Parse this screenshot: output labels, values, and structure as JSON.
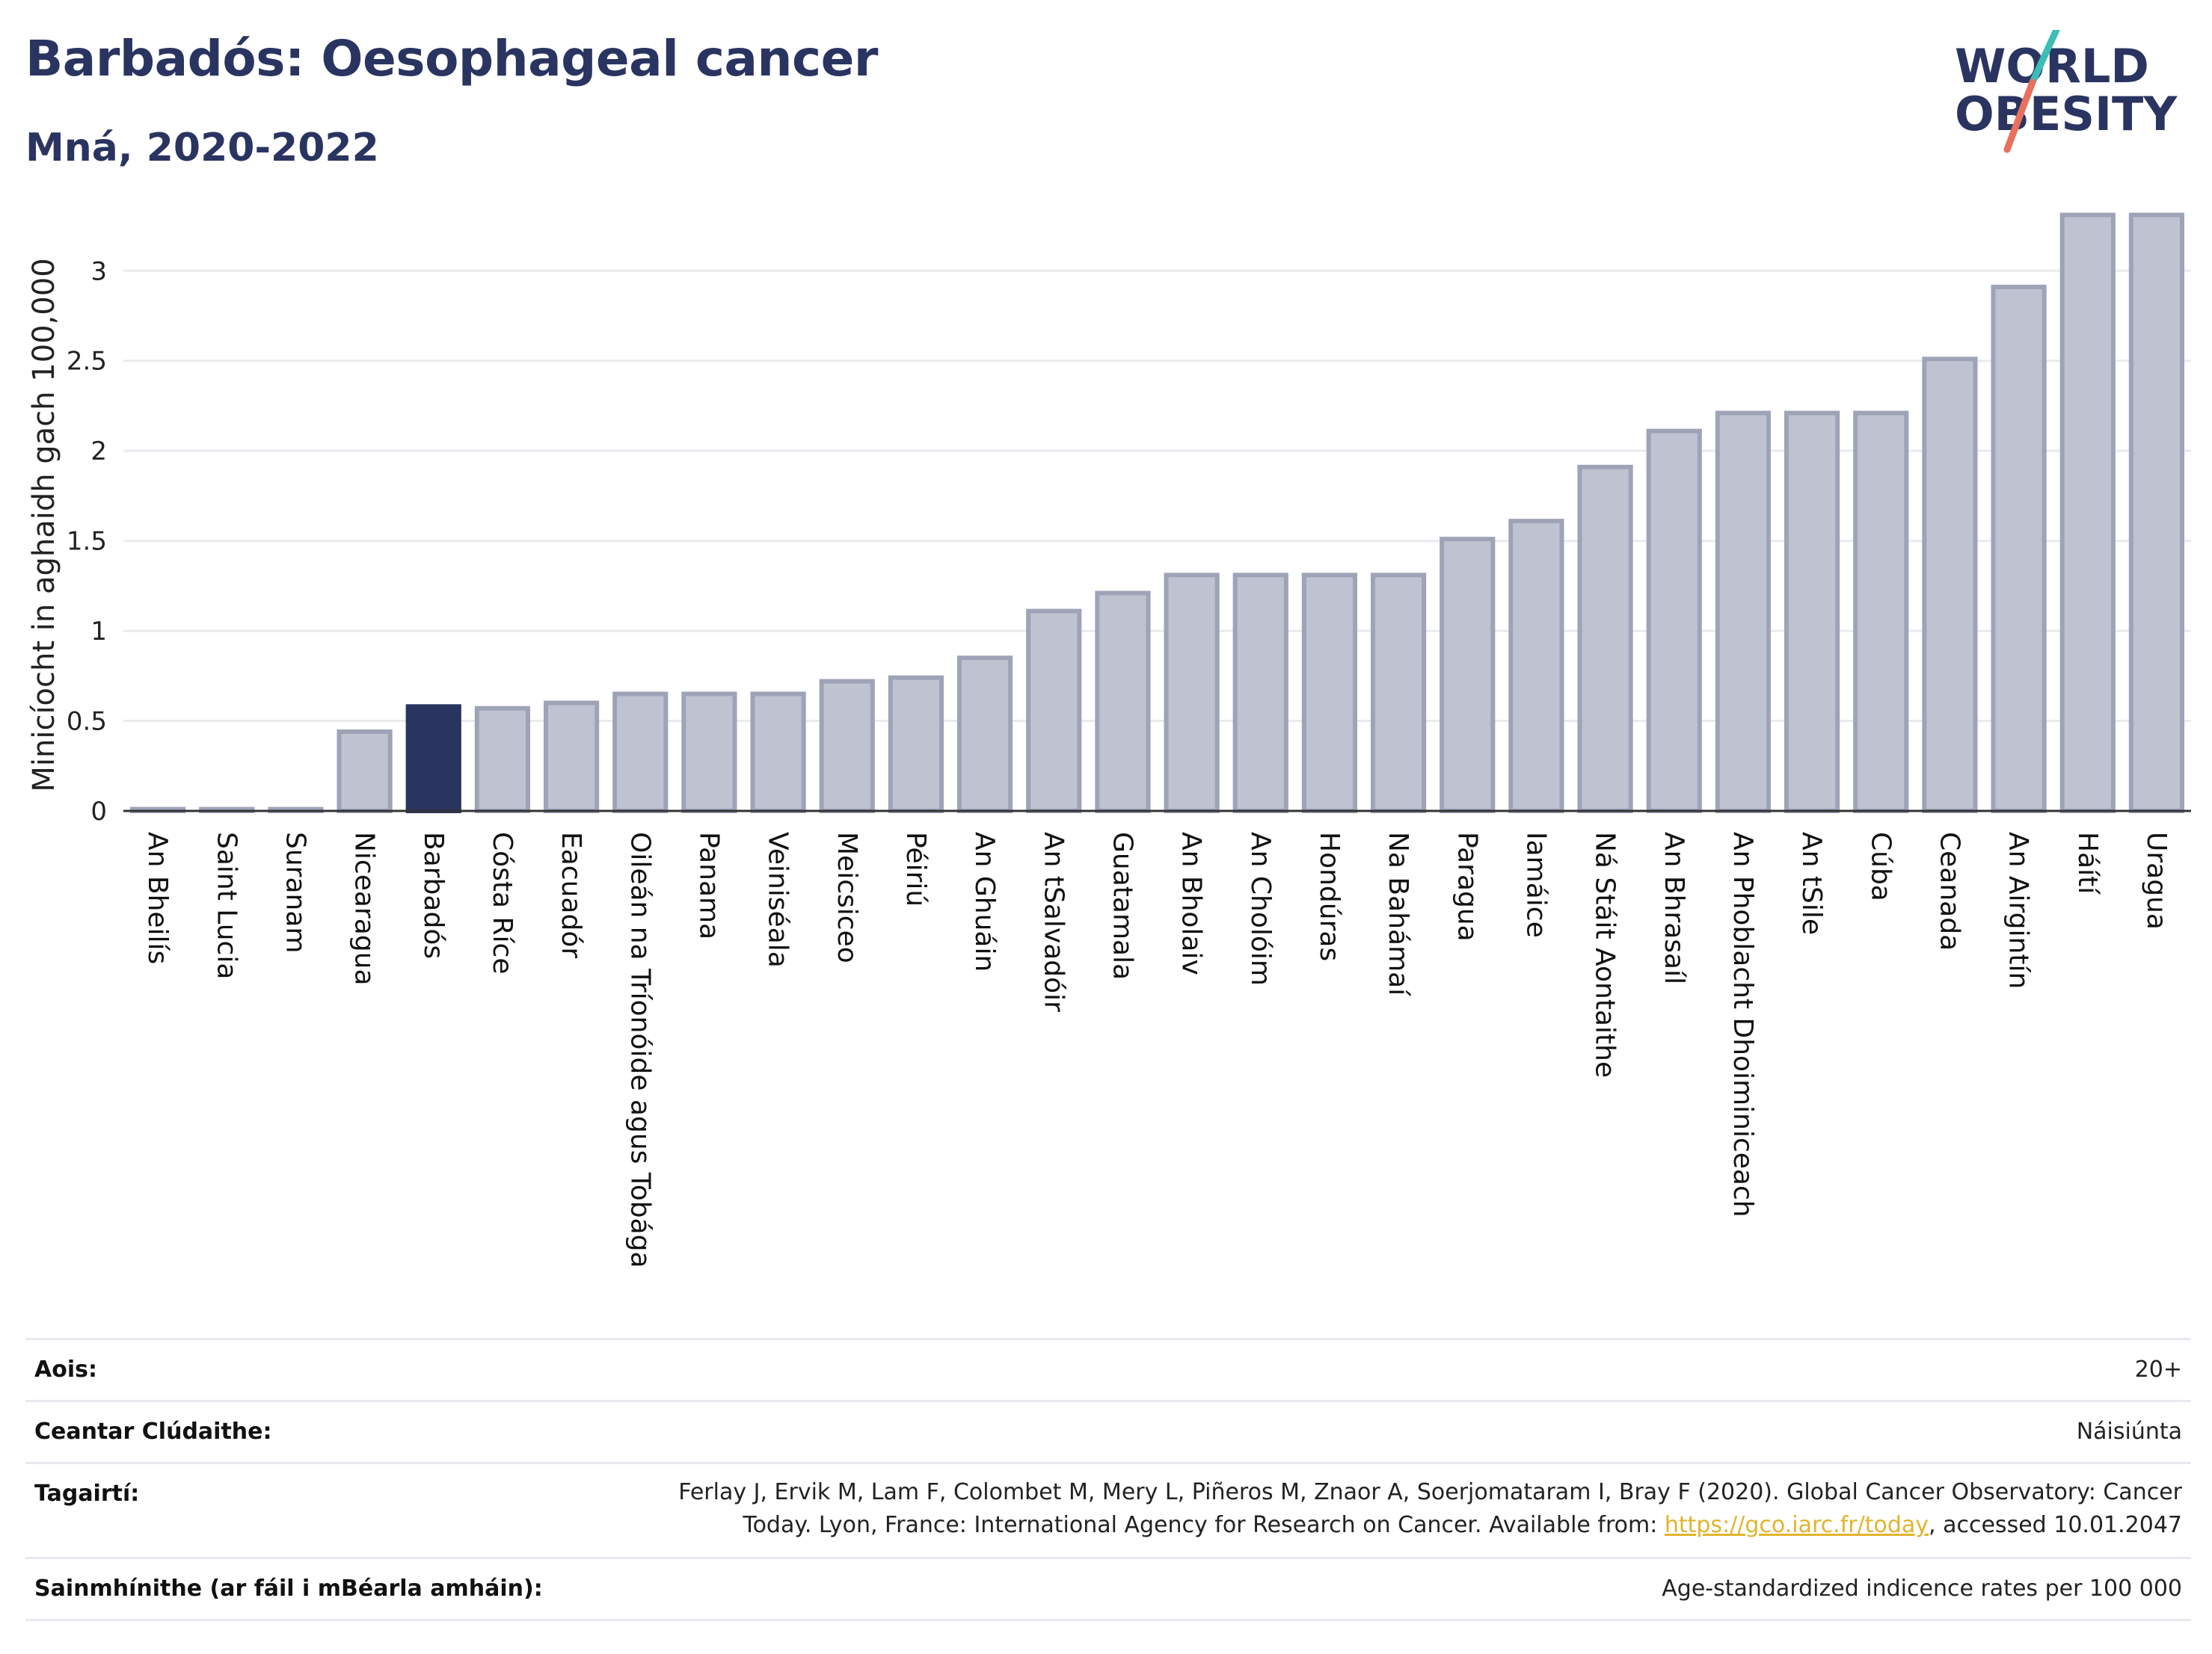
{
  "title": "Barbadós: Oesophageal cancer",
  "subtitle": "Mná, 2020-2022",
  "logo": {
    "line1": "WORLD",
    "line2": "OBESITY"
  },
  "colors": {
    "bar": "#bfc3d1",
    "bar_stroke": "#9ea3b8",
    "highlight": "#2a3461",
    "title": "#2a3461",
    "grid": "#e9ebef",
    "slash_teal": "#3dbdb5",
    "slash_red": "#e8705f"
  },
  "chart_data": {
    "type": "bar",
    "ylabel": "Minicíocht in aghaidh gach 100,000",
    "xlabel": "",
    "ylim": [
      0,
      3.3
    ],
    "yticks": [
      0,
      0.5,
      1,
      1.5,
      2,
      2.5,
      3
    ],
    "ytick_labels": [
      "0",
      "0.5",
      "1",
      "1.5",
      "2",
      "2.5",
      "3"
    ],
    "grid": true,
    "highlight": "Barbadós",
    "categories": [
      "An Bheilís",
      "Saint Lucia",
      "Suranam",
      "Nicearagua",
      "Barbadós",
      "Cósta Ríce",
      "Eacuadór",
      "Oileán na Tríonóide agus Tobága",
      "Panama",
      "Veiniséala",
      "Meicsiceo",
      "Péiriú",
      "An Ghuáin",
      "An tSalvadóir",
      "Guatamala",
      "An Bholaiv",
      "An Cholóim",
      "Hondúras",
      "Na Bahámaí",
      "Paragua",
      "Iamáice",
      "Ná Stáit Aontaithe",
      "An Bhrasaíl",
      "An Phoblacht Dhoiminiceach",
      "An tSile",
      "Cúba",
      "Ceanada",
      "An Airgintín",
      "Háítí",
      "Uragua"
    ],
    "values": [
      0.01,
      0.01,
      0.01,
      0.44,
      0.58,
      0.57,
      0.6,
      0.65,
      0.65,
      0.65,
      0.72,
      0.74,
      0.85,
      1.11,
      1.21,
      1.31,
      1.31,
      1.31,
      1.31,
      1.51,
      1.61,
      1.91,
      2.11,
      2.21,
      2.21,
      2.21,
      2.51,
      2.91,
      3.31,
      3.31
    ]
  },
  "info": {
    "rows": [
      {
        "label": "Aois:",
        "value": "20+"
      },
      {
        "label": "Ceantar Clúdaithe:",
        "value": "Náisiúnta"
      },
      {
        "label": "Tagairtí:",
        "value_line1": "Ferlay J, Ervik M, Lam F, Colombet M, Mery L, Piñeros M, Znaor A, Soerjomataram I, Bray F (2020). Global Cancer Observatory: Cancer",
        "value_line2_pre": "Today. Lyon, France: International Agency for Research on Cancer. Available from: ",
        "link": "https://gco.iarc.fr/today",
        "value_line2_post": ", accessed 10.01.2047"
      },
      {
        "label": "Sainmhínithe (ar fáil i mBéarla amháin):",
        "value": "Age-standardized indicence rates per 100 000"
      }
    ]
  }
}
